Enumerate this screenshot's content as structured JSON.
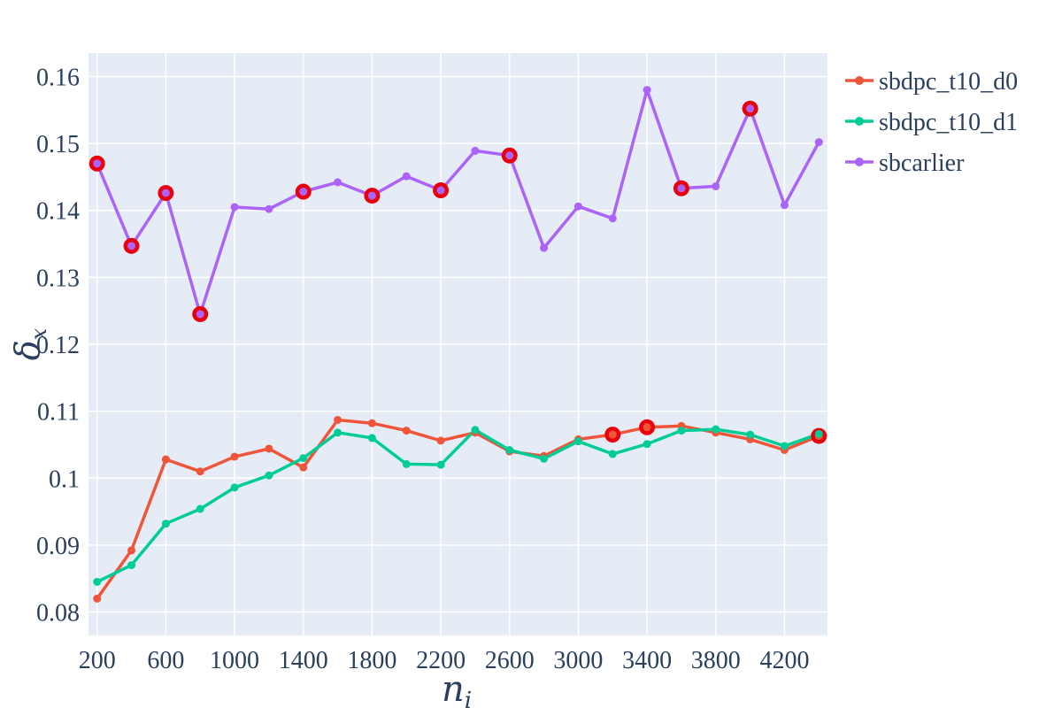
{
  "chart_data": {
    "type": "line",
    "xlabel": "n",
    "xlabel_sub": "i",
    "ylabel": "δ",
    "ylabel_sub": "x",
    "xlim": [
      150,
      4450
    ],
    "ylim": [
      0.0765,
      0.1635
    ],
    "x_ticks": [
      200,
      600,
      1000,
      1400,
      1800,
      2200,
      2600,
      3000,
      3400,
      3800,
      4200
    ],
    "x_tick_labels": [
      "200",
      "600",
      "1000",
      "1400",
      "1800",
      "2200",
      "2600",
      "3000",
      "3400",
      "3800",
      "4200"
    ],
    "y_ticks": [
      0.08,
      0.09,
      0.1,
      0.11,
      0.12,
      0.13,
      0.14,
      0.15,
      0.16
    ],
    "y_tick_labels": [
      "0.08",
      "0.09",
      "0.1",
      "0.11",
      "0.12",
      "0.13",
      "0.14",
      "0.15",
      "0.16"
    ],
    "grid": true,
    "legend_position": "top-right",
    "x": [
      200,
      400,
      600,
      800,
      1000,
      1200,
      1400,
      1600,
      1800,
      2000,
      2200,
      2400,
      2600,
      2800,
      3000,
      3200,
      3400,
      3600,
      3800,
      4000,
      4200,
      4400
    ],
    "series": [
      {
        "name": "sbdpc_t10_d0",
        "color": "#ef553b",
        "values": [
          0.082,
          0.0892,
          0.1028,
          0.101,
          0.1032,
          0.1044,
          0.1016,
          0.1087,
          0.1082,
          0.1071,
          0.1056,
          0.1068,
          0.104,
          0.1033,
          0.1058,
          0.1065,
          0.1076,
          0.1078,
          0.1068,
          0.1058,
          0.1042,
          0.1063
        ],
        "highlighted_indices": [
          15,
          16,
          21
        ]
      },
      {
        "name": "sbdpc_t10_d1",
        "color": "#00cc96",
        "values": [
          0.0845,
          0.087,
          0.0932,
          0.0954,
          0.0986,
          0.1004,
          0.103,
          0.1068,
          0.106,
          0.1021,
          0.102,
          0.1072,
          0.1042,
          0.1029,
          0.1055,
          0.1036,
          0.1051,
          0.1071,
          0.1073,
          0.1065,
          0.1048,
          0.1066
        ],
        "highlighted_indices": []
      },
      {
        "name": "sbcarlier",
        "color": "#ab63fa",
        "values": [
          0.147,
          0.1347,
          0.1426,
          0.1245,
          0.1405,
          0.1402,
          0.1428,
          0.1442,
          0.1422,
          0.1451,
          0.143,
          0.1489,
          0.1482,
          0.1344,
          0.1406,
          0.1388,
          0.158,
          0.1433,
          0.1436,
          0.1552,
          0.1408,
          0.1502
        ],
        "highlighted_indices": [
          0,
          1,
          2,
          3,
          6,
          8,
          10,
          12,
          17,
          19
        ]
      }
    ],
    "highlight_color": "#e8000b"
  }
}
